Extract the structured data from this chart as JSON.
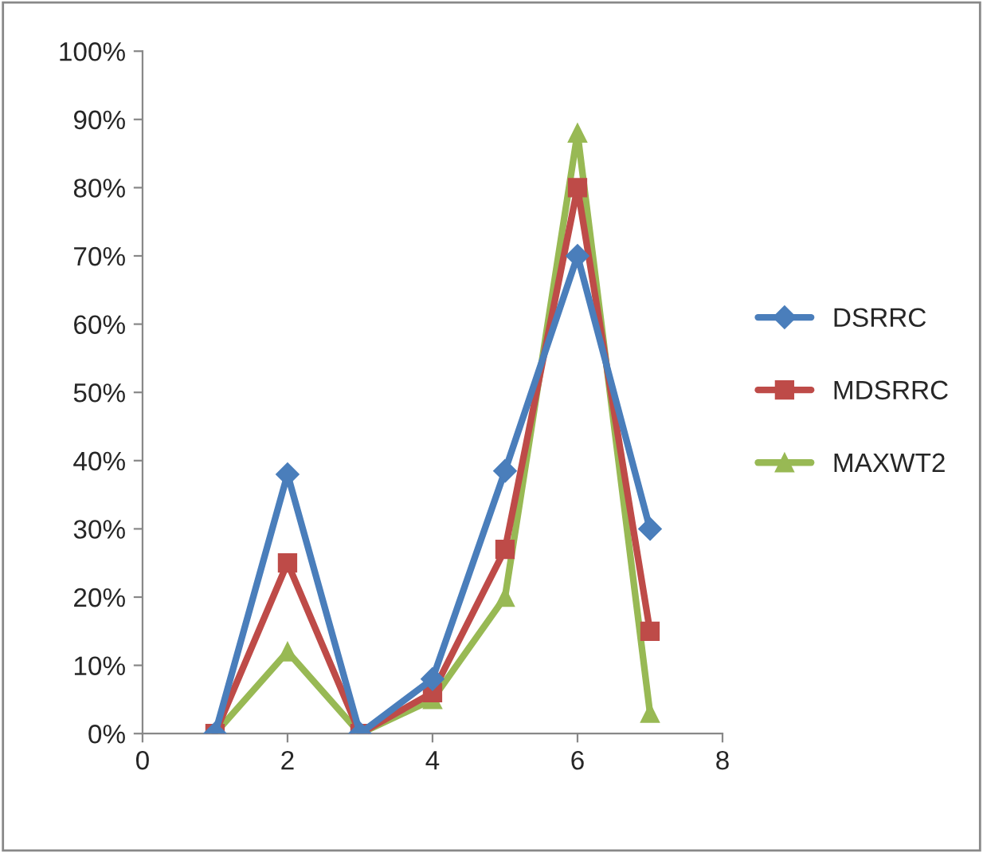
{
  "chart_data": {
    "type": "line",
    "x": [
      1,
      2,
      3,
      4,
      5,
      6,
      7
    ],
    "series": [
      {
        "name": "DSRRC",
        "color": "#4a7ebb",
        "marker": "diamond",
        "values": [
          0,
          38,
          0,
          8,
          38.5,
          70,
          30
        ]
      },
      {
        "name": "MDSRRC",
        "color": "#be4b48",
        "marker": "square",
        "values": [
          0,
          25,
          0,
          6,
          27,
          80,
          15
        ]
      },
      {
        "name": "MAXWT2",
        "color": "#98b954",
        "marker": "triangle",
        "values": [
          0,
          12,
          0,
          5,
          20,
          88,
          3
        ]
      }
    ],
    "xlim": [
      0,
      8
    ],
    "xticks": [
      0,
      2,
      4,
      6,
      8
    ],
    "ylim": [
      0,
      100
    ],
    "yticks": [
      {
        "value": 0,
        "label": "0%"
      },
      {
        "value": 10,
        "label": "10%"
      },
      {
        "value": 20,
        "label": "20%"
      },
      {
        "value": 30,
        "label": "30%"
      },
      {
        "value": 40,
        "label": "40%"
      },
      {
        "value": 50,
        "label": "50%"
      },
      {
        "value": 60,
        "label": "60%"
      },
      {
        "value": 70,
        "label": "70%"
      },
      {
        "value": 80,
        "label": "80%"
      },
      {
        "value": 90,
        "label": "90%"
      },
      {
        "value": 100,
        "label": "100%"
      }
    ],
    "grid": false,
    "legend": "right",
    "line_style": "solid"
  }
}
